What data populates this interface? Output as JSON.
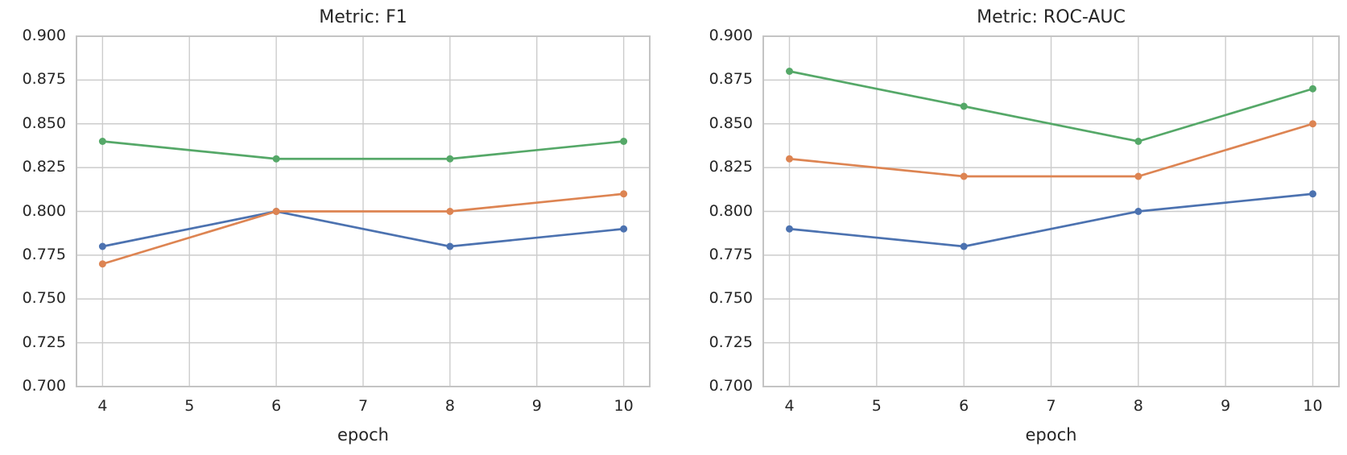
{
  "figure": {
    "background": "#ffffff",
    "text_color": "#262626",
    "grid_color": "#cccccc",
    "spine_color": "#c4c4c4"
  },
  "chart_data": [
    {
      "type": "line",
      "title": "Metric: F1",
      "xlabel": "epoch",
      "ylabel": "",
      "grid": true,
      "legend": "none",
      "x": [
        4,
        6,
        8,
        10
      ],
      "xticks": [
        4,
        5,
        6,
        7,
        8,
        9,
        10
      ],
      "xtick_labels": [
        "4",
        "5",
        "6",
        "7",
        "8",
        "9",
        "10"
      ],
      "yticks": [
        0.7,
        0.725,
        0.75,
        0.775,
        0.8,
        0.825,
        0.85,
        0.875,
        0.9
      ],
      "ytick_labels": [
        "0.700",
        "0.725",
        "0.750",
        "0.775",
        "0.800",
        "0.825",
        "0.850",
        "0.875",
        "0.900"
      ],
      "xlim": [
        3.7,
        10.3
      ],
      "ylim": [
        0.7,
        0.9
      ],
      "series": [
        {
          "name": "blue-series",
          "color": "#4C72B0",
          "marker": "circle",
          "values": [
            0.78,
            0.8,
            0.78,
            0.79
          ]
        },
        {
          "name": "orange-series",
          "color": "#DD8452",
          "marker": "circle",
          "values": [
            0.77,
            0.8,
            0.8,
            0.81
          ]
        },
        {
          "name": "green-series",
          "color": "#55A868",
          "marker": "circle",
          "values": [
            0.84,
            0.83,
            0.83,
            0.84
          ]
        }
      ]
    },
    {
      "type": "line",
      "title": "Metric: ROC-AUC",
      "xlabel": "epoch",
      "ylabel": "",
      "grid": true,
      "legend": "none",
      "x": [
        4,
        6,
        8,
        10
      ],
      "xticks": [
        4,
        5,
        6,
        7,
        8,
        9,
        10
      ],
      "xtick_labels": [
        "4",
        "5",
        "6",
        "7",
        "8",
        "9",
        "10"
      ],
      "yticks": [
        0.7,
        0.725,
        0.75,
        0.775,
        0.8,
        0.825,
        0.85,
        0.875,
        0.9
      ],
      "ytick_labels": [
        "0.700",
        "0.725",
        "0.750",
        "0.775",
        "0.800",
        "0.825",
        "0.850",
        "0.875",
        "0.900"
      ],
      "xlim": [
        3.7,
        10.3
      ],
      "ylim": [
        0.7,
        0.9
      ],
      "series": [
        {
          "name": "blue-series",
          "color": "#4C72B0",
          "marker": "circle",
          "values": [
            0.79,
            0.78,
            0.8,
            0.81
          ]
        },
        {
          "name": "orange-series",
          "color": "#DD8452",
          "marker": "circle",
          "values": [
            0.83,
            0.82,
            0.82,
            0.85
          ]
        },
        {
          "name": "green-series",
          "color": "#55A868",
          "marker": "circle",
          "values": [
            0.88,
            0.86,
            0.84,
            0.87
          ]
        }
      ]
    }
  ]
}
